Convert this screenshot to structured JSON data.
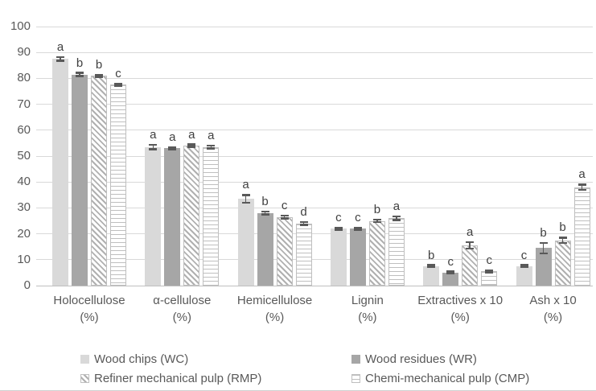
{
  "chart_data": {
    "type": "bar",
    "title": "",
    "xlabel": "",
    "ylabel": "",
    "ylim": [
      0,
      100
    ],
    "yticks": [
      0,
      10,
      20,
      30,
      40,
      50,
      60,
      70,
      80,
      90,
      100
    ],
    "grid": "horizontal",
    "legend_position": "bottom-two-columns",
    "categories": [
      {
        "name": "Holocellulose",
        "unit": "(%)"
      },
      {
        "name": "α-cellulose",
        "unit": "(%)"
      },
      {
        "name": "Hemicellulose",
        "unit": "(%)"
      },
      {
        "name": "Lignin",
        "unit": "(%)"
      },
      {
        "name": "Extractives x 10",
        "unit": "(%)"
      },
      {
        "name": "Ash x 10",
        "unit": "(%)"
      }
    ],
    "series": [
      {
        "name": "Wood chips (WC)",
        "pattern": "solid-light-gray",
        "values": [
          87.5,
          53.5,
          33.5,
          22,
          7.5,
          7.5
        ],
        "errors": [
          0.7,
          0.8,
          1.5,
          0.4,
          0.4,
          0.4
        ],
        "letters": [
          "a",
          "a",
          "a",
          "c",
          "b",
          "c"
        ]
      },
      {
        "name": "Wood residues (WR)",
        "pattern": "solid-medium-gray",
        "values": [
          81.5,
          53,
          28,
          22,
          5,
          14.5
        ],
        "errors": [
          0.6,
          0.4,
          0.5,
          0.4,
          0.4,
          2.0
        ],
        "letters": [
          "b",
          "a",
          "b",
          "c",
          "c",
          "b"
        ]
      },
      {
        "name": "Refiner mechanical pulp (RMP)",
        "pattern": "diagonal-hatch",
        "values": [
          81,
          54,
          26.5,
          25,
          15.5,
          17.5
        ],
        "errors": [
          0.4,
          0.5,
          0.5,
          0.5,
          1.2,
          1.0
        ],
        "letters": [
          "b",
          "a",
          "c",
          "b",
          "a",
          "b"
        ]
      },
      {
        "name": "Chemi-mechanical pulp (CMP)",
        "pattern": "horizontal-lines",
        "values": [
          77.5,
          53.5,
          24,
          26,
          5.5,
          38
        ],
        "errors": [
          0.4,
          0.5,
          0.5,
          0.7,
          0.4,
          1.0
        ],
        "letters": [
          "c",
          "a",
          "d",
          "a",
          "c",
          "a"
        ]
      }
    ]
  },
  "colors": {
    "bar_light_gray": "#d9d9d9",
    "bar_medium_gray": "#a6a6a6",
    "pattern_stroke": "#b0b0b0",
    "pattern_border": "#bfbfbf",
    "gridline": "#d9d9d9",
    "axis_line": "#bfbfbf",
    "axis_text": "#595959",
    "letter_text": "#404040",
    "error_bar": "#595959"
  }
}
